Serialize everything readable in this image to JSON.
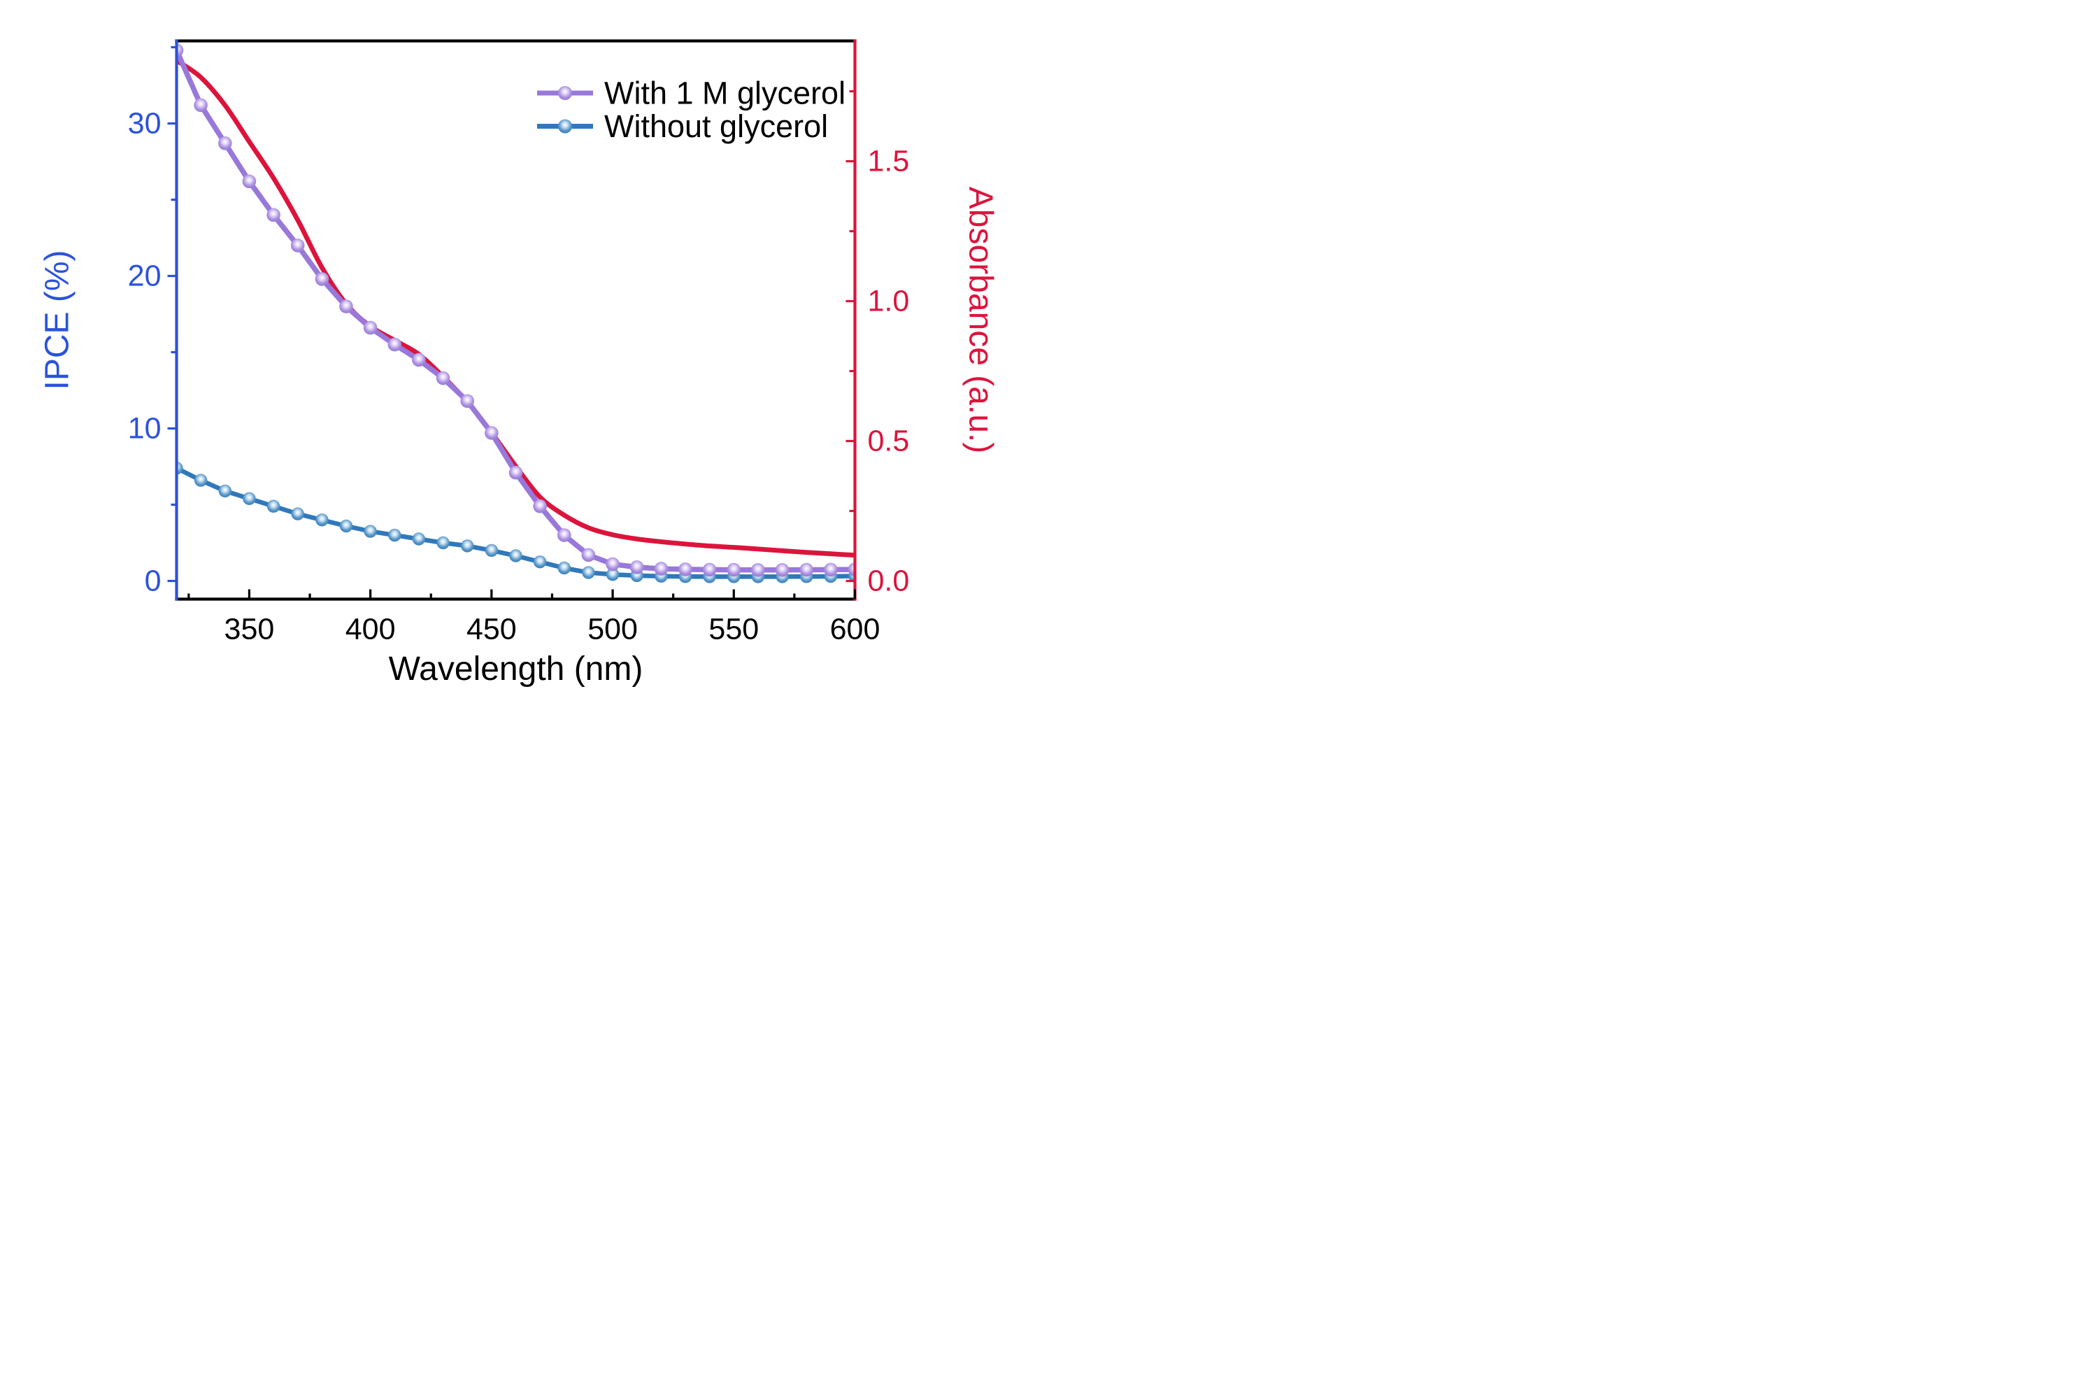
{
  "figure": {
    "background": "#ffffff",
    "frame": {
      "top_color": "#000000",
      "bottom_color": "#000000",
      "left_color": "#2B52DC",
      "right_color": "#DC143C"
    },
    "x_axis": {
      "title": "Wavelength (nm)",
      "color": "#000000",
      "range": [
        320,
        600
      ],
      "major_ticks": [
        350,
        400,
        450,
        500,
        550,
        600
      ],
      "tick_labels": [
        "350",
        "400",
        "450",
        "500",
        "550",
        "600"
      ],
      "minor_ticks": [
        325,
        375,
        425,
        475,
        525,
        575
      ],
      "tick_direction": "in"
    },
    "y_left": {
      "title": "IPCE (%)",
      "color": "#2B52DC",
      "major_ticks": [
        0,
        10,
        20,
        30
      ],
      "tick_labels": [
        "0",
        "10",
        "20",
        "30"
      ],
      "minor_ticks": [
        5,
        15,
        25,
        35
      ],
      "tick_direction": "out"
    },
    "y_right": {
      "title": "Absorbance (a.u.)",
      "color": "#DC143C",
      "major_ticks": [
        0,
        0.5,
        1.0,
        1.5
      ],
      "tick_labels": [
        "0.0",
        "0.5",
        "1.0",
        "1.5"
      ],
      "minor_ticks": [
        0.25,
        0.75,
        1.25,
        1.75
      ],
      "tick_direction": "in"
    }
  },
  "legend": {
    "items": [
      {
        "label": "With 1 M glycerol",
        "color": "#9878DA",
        "marker": "sphere"
      },
      {
        "label": "Without glycerol",
        "color": "#2F78BA",
        "marker": "sphere"
      }
    ],
    "position": "top-right-inside",
    "text_color": "#000000"
  },
  "chart_data": {
    "type": "line",
    "title": "",
    "xlabel": "Wavelength (nm)",
    "ylabel_left": "IPCE (%)",
    "ylabel_right": "Absorbance (a.u.)",
    "x_range": [
      320,
      600
    ],
    "y_left_range": [
      0,
      35.4
    ],
    "y_right_range": [
      0,
      1.93
    ],
    "grid": false,
    "x": [
      320,
      330,
      340,
      350,
      360,
      370,
      380,
      390,
      400,
      410,
      420,
      430,
      440,
      450,
      460,
      470,
      480,
      490,
      500,
      510,
      520,
      530,
      540,
      550,
      560,
      570,
      580,
      590,
      600
    ],
    "series": [
      {
        "name": "With 1 M glycerol",
        "axis": "left",
        "color": "#9878DA",
        "marker": "sphere",
        "values": [
          34.8,
          31.2,
          28.7,
          26.2,
          24.0,
          22.0,
          19.8,
          18.0,
          16.6,
          15.5,
          14.5,
          13.3,
          11.8,
          9.7,
          7.1,
          4.9,
          3.0,
          1.7,
          1.1,
          0.9,
          0.8,
          0.76,
          0.74,
          0.73,
          0.72,
          0.72,
          0.73,
          0.74,
          0.75
        ]
      },
      {
        "name": "Without glycerol",
        "axis": "left",
        "color": "#2F78BA",
        "marker": "sphere",
        "values": [
          7.4,
          6.6,
          5.9,
          5.4,
          4.9,
          4.4,
          4.0,
          3.6,
          3.25,
          3.0,
          2.75,
          2.5,
          2.3,
          2.0,
          1.65,
          1.25,
          0.85,
          0.55,
          0.42,
          0.35,
          0.31,
          0.29,
          0.28,
          0.28,
          0.28,
          0.28,
          0.29,
          0.3,
          0.32
        ]
      },
      {
        "name": "Absorbance",
        "axis": "right",
        "color": "#DC143C",
        "marker": "none",
        "values": [
          1.86,
          1.8,
          1.7,
          1.57,
          1.44,
          1.29,
          1.12,
          0.99,
          0.91,
          0.86,
          0.81,
          0.73,
          0.64,
          0.53,
          0.41,
          0.3,
          0.235,
          0.19,
          0.165,
          0.15,
          0.14,
          0.132,
          0.125,
          0.12,
          0.114,
          0.108,
          0.102,
          0.097,
          0.092
        ]
      }
    ]
  }
}
